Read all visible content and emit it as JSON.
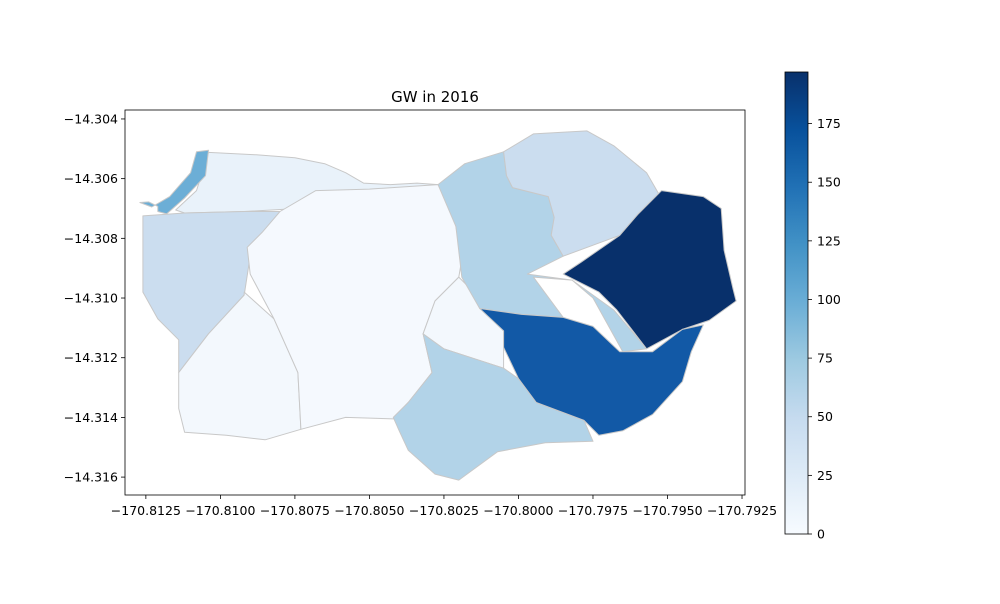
{
  "chart_data": {
    "type": "choropleth",
    "title": "GW in 2016",
    "xlabel": "",
    "ylabel": "",
    "xlim": [
      -170.8132,
      -170.7924
    ],
    "ylim": [
      -14.3166,
      -14.3037
    ],
    "x_ticks": [
      {
        "value": -170.8125,
        "label": "−170.8125"
      },
      {
        "value": -170.81,
        "label": "−170.8100"
      },
      {
        "value": -170.8075,
        "label": "−170.8075"
      },
      {
        "value": -170.805,
        "label": "−170.8050"
      },
      {
        "value": -170.8025,
        "label": "−170.8025"
      },
      {
        "value": -170.8,
        "label": "−170.8000"
      },
      {
        "value": -170.7975,
        "label": "−170.7975"
      },
      {
        "value": -170.795,
        "label": "−170.7950"
      },
      {
        "value": -170.7925,
        "label": "−170.7925"
      }
    ],
    "y_ticks": [
      {
        "value": -14.304,
        "label": "−14.304"
      },
      {
        "value": -14.306,
        "label": "−14.306"
      },
      {
        "value": -14.308,
        "label": "−14.308"
      },
      {
        "value": -14.31,
        "label": "−14.310"
      },
      {
        "value": -14.312,
        "label": "−14.312"
      },
      {
        "value": -14.314,
        "label": "−14.314"
      },
      {
        "value": -14.316,
        "label": "−14.316"
      }
    ],
    "colorbar": {
      "cmap": "Blues",
      "min": 0,
      "max": 197,
      "ticks": [
        {
          "value": 0,
          "label": "0"
        },
        {
          "value": 25,
          "label": "25"
        },
        {
          "value": 50,
          "label": "50"
        },
        {
          "value": 75,
          "label": "75"
        },
        {
          "value": 100,
          "label": "100"
        },
        {
          "value": 125,
          "label": "125"
        },
        {
          "value": 150,
          "label": "150"
        },
        {
          "value": 175,
          "label": "175"
        }
      ]
    },
    "regions": [
      {
        "id": "north-strip",
        "value": 12,
        "color": "#e9f2fa",
        "points": [
          [
            -170.8104,
            -14.30512
          ],
          [
            -170.8088,
            -14.3052
          ],
          [
            -170.8075,
            -14.3053
          ],
          [
            -170.8065,
            -14.3055
          ],
          [
            -170.8058,
            -14.3058
          ],
          [
            -170.8052,
            -14.30615
          ],
          [
            -170.8043,
            -14.3062
          ],
          [
            -170.8034,
            -14.30615
          ],
          [
            -170.8027,
            -14.3062
          ],
          [
            -170.8027,
            -14.30685
          ],
          [
            -170.8043,
            -14.3069
          ],
          [
            -170.806,
            -14.30693
          ],
          [
            -170.8074,
            -14.307
          ],
          [
            -170.8092,
            -14.3071
          ],
          [
            -170.8112,
            -14.30715
          ],
          [
            -170.8115,
            -14.30705
          ],
          [
            -170.8108,
            -14.3064
          ]
        ]
      },
      {
        "id": "northwest-sliver",
        "value": 100,
        "color": "#6caed6",
        "points": [
          [
            -170.8104,
            -14.30505
          ],
          [
            -170.8108,
            -14.3051
          ],
          [
            -170.811,
            -14.3058
          ],
          [
            -170.8117,
            -14.3066
          ],
          [
            -170.8123,
            -14.30695
          ],
          [
            -170.8127,
            -14.3068
          ],
          [
            -170.8124,
            -14.30678
          ],
          [
            -170.8121,
            -14.30693
          ],
          [
            -170.8121,
            -14.3071
          ],
          [
            -170.8118,
            -14.30718
          ],
          [
            -170.8112,
            -14.30665
          ],
          [
            -170.8105,
            -14.3059
          ]
        ]
      },
      {
        "id": "west-region",
        "value": 45,
        "color": "#cbddef",
        "points": [
          [
            -170.8126,
            -14.30725
          ],
          [
            -170.8112,
            -14.30715
          ],
          [
            -170.8092,
            -14.3071
          ],
          [
            -170.808,
            -14.3071
          ],
          [
            -170.8086,
            -14.3079
          ],
          [
            -170.809,
            -14.3086
          ],
          [
            -170.8092,
            -14.3099
          ],
          [
            -170.8104,
            -14.3112
          ],
          [
            -170.8114,
            -14.3125
          ],
          [
            -170.8114,
            -14.3114
          ],
          [
            -170.8121,
            -14.3107
          ],
          [
            -170.8126,
            -14.3098
          ]
        ]
      },
      {
        "id": "central-west",
        "value": 3,
        "color": "#f3f8fd",
        "points": [
          [
            -170.8092,
            -14.3099
          ],
          [
            -170.8104,
            -14.3112
          ],
          [
            -170.8114,
            -14.3125
          ],
          [
            -170.8114,
            -14.3137
          ],
          [
            -170.8112,
            -14.3145
          ],
          [
            -170.8098,
            -14.3146
          ],
          [
            -170.8085,
            -14.31475
          ],
          [
            -170.8073,
            -14.3144
          ],
          [
            -170.8074,
            -14.3125
          ],
          [
            -170.8082,
            -14.3107
          ],
          [
            -170.8092,
            -14.3098
          ]
        ]
      },
      {
        "id": "central",
        "value": 2,
        "color": "#f5f9fe",
        "points": [
          [
            -170.808,
            -14.3071
          ],
          [
            -170.8068,
            -14.3064
          ],
          [
            -170.805,
            -14.30635
          ],
          [
            -170.8027,
            -14.3062
          ],
          [
            -170.8022,
            -14.3069
          ],
          [
            -170.8021,
            -14.3076
          ],
          [
            -170.8019,
            -14.3087
          ],
          [
            -170.802,
            -14.3093
          ],
          [
            -170.8028,
            -14.3101
          ],
          [
            -170.8032,
            -14.3112
          ],
          [
            -170.8029,
            -14.3125
          ],
          [
            -170.8037,
            -14.3135
          ],
          [
            -170.8042,
            -14.31405
          ],
          [
            -170.8058,
            -14.314
          ],
          [
            -170.8073,
            -14.3144
          ],
          [
            -170.8074,
            -14.3125
          ],
          [
            -170.8082,
            -14.3107
          ],
          [
            -170.809,
            -14.3092
          ],
          [
            -170.8091,
            -14.3083
          ],
          [
            -170.8086,
            -14.3078
          ]
        ]
      },
      {
        "id": "center-pocket",
        "value": 4,
        "color": "#f3f8fd",
        "points": [
          [
            -170.802,
            -14.3093
          ],
          [
            -170.8028,
            -14.3101
          ],
          [
            -170.8032,
            -14.3112
          ],
          [
            -170.803,
            -14.3116
          ],
          [
            -170.8025,
            -14.3117
          ],
          [
            -170.8005,
            -14.31235
          ],
          [
            -170.8005,
            -14.3111
          ],
          [
            -170.8011,
            -14.3103
          ],
          [
            -170.8016,
            -14.3097
          ]
        ]
      },
      {
        "id": "south-center",
        "value": 62,
        "color": "#b2d3e8",
        "points": [
          [
            -170.8032,
            -14.3112
          ],
          [
            -170.8025,
            -14.3117
          ],
          [
            -170.8005,
            -14.31235
          ],
          [
            -170.8,
            -14.3127
          ],
          [
            -170.7994,
            -14.3135
          ],
          [
            -170.7978,
            -14.3141
          ],
          [
            -170.7975,
            -14.3148
          ],
          [
            -170.7991,
            -14.31485
          ],
          [
            -170.8007,
            -14.31515
          ],
          [
            -170.802,
            -14.3161
          ],
          [
            -170.8028,
            -14.3159
          ],
          [
            -170.8037,
            -14.3151
          ],
          [
            -170.804,
            -14.31445
          ],
          [
            -170.8042,
            -14.314
          ],
          [
            -170.8037,
            -14.3135
          ],
          [
            -170.8029,
            -14.3125
          ]
        ]
      },
      {
        "id": "north-center",
        "value": 63,
        "color": "#b2d3e8",
        "points": [
          [
            -170.8027,
            -14.3062
          ],
          [
            -170.8018,
            -14.3055
          ],
          [
            -170.8005,
            -14.3051
          ],
          [
            -170.8004,
            -14.3059
          ],
          [
            -170.8002,
            -14.3063
          ],
          [
            -170.799,
            -14.3066
          ],
          [
            -170.7988,
            -14.3073
          ],
          [
            -170.7989,
            -14.3079
          ],
          [
            -170.7985,
            -14.3086
          ],
          [
            -170.7997,
            -14.3092
          ],
          [
            -170.7982,
            -14.3094
          ],
          [
            -170.7975,
            -14.31
          ],
          [
            -170.7965,
            -14.3118
          ],
          [
            -170.7957,
            -14.3117
          ],
          [
            -170.7968,
            -14.3104
          ],
          [
            -170.7982,
            -14.3094
          ],
          [
            -170.7995,
            -14.3093
          ],
          [
            -170.7985,
            -14.31065
          ],
          [
            -170.7999,
            -14.31055
          ],
          [
            -170.8013,
            -14.31035
          ],
          [
            -170.8019,
            -14.3093
          ],
          [
            -170.8021,
            -14.3076
          ]
        ]
      },
      {
        "id": "northeast-upper",
        "value": 47,
        "color": "#cbddef",
        "points": [
          [
            -170.8005,
            -14.3051
          ],
          [
            -170.7995,
            -14.3045
          ],
          [
            -170.7977,
            -14.3044
          ],
          [
            -170.7968,
            -14.3049
          ],
          [
            -170.7957,
            -14.3058
          ],
          [
            -170.7953,
            -14.3065
          ],
          [
            -170.796,
            -14.3072
          ],
          [
            -170.7966,
            -14.3079
          ],
          [
            -170.7985,
            -14.3086
          ],
          [
            -170.7989,
            -14.3079
          ],
          [
            -170.7988,
            -14.3073
          ],
          [
            -170.799,
            -14.3066
          ],
          [
            -170.8002,
            -14.3063
          ],
          [
            -170.8004,
            -14.3059
          ]
        ]
      },
      {
        "id": "east",
        "value": 197,
        "color": "#08306b",
        "points": [
          [
            -170.7966,
            -14.3079
          ],
          [
            -170.796,
            -14.3072
          ],
          [
            -170.7952,
            -14.3064
          ],
          [
            -170.7938,
            -14.3066
          ],
          [
            -170.7932,
            -14.307
          ],
          [
            -170.7931,
            -14.3084
          ],
          [
            -170.7928,
            -14.3097
          ],
          [
            -170.7927,
            -14.3101
          ],
          [
            -170.7936,
            -14.31075
          ],
          [
            -170.7945,
            -14.31105
          ],
          [
            -170.7957,
            -14.3117
          ],
          [
            -170.7967,
            -14.3104
          ],
          [
            -170.7973,
            -14.3098
          ],
          [
            -170.7985,
            -14.3092
          ],
          [
            -170.7979,
            -14.3088
          ]
        ]
      },
      {
        "id": "southeast",
        "value": 155,
        "color": "#1259a6",
        "points": [
          [
            -170.8013,
            -14.31035
          ],
          [
            -170.7999,
            -14.31055
          ],
          [
            -170.7985,
            -14.31065
          ],
          [
            -170.7975,
            -14.31095
          ],
          [
            -170.7966,
            -14.3118
          ],
          [
            -170.7955,
            -14.3118
          ],
          [
            -170.7945,
            -14.31105
          ],
          [
            -170.7938,
            -14.3109
          ],
          [
            -170.7942,
            -14.3118
          ],
          [
            -170.7945,
            -14.3128
          ],
          [
            -170.7955,
            -14.3139
          ],
          [
            -170.7965,
            -14.31445
          ],
          [
            -170.7973,
            -14.3146
          ],
          [
            -170.7978,
            -14.3141
          ],
          [
            -170.7994,
            -14.3135
          ],
          [
            -170.8,
            -14.3127
          ],
          [
            -170.8005,
            -14.31165
          ],
          [
            -170.8005,
            -14.3111
          ]
        ]
      }
    ]
  }
}
